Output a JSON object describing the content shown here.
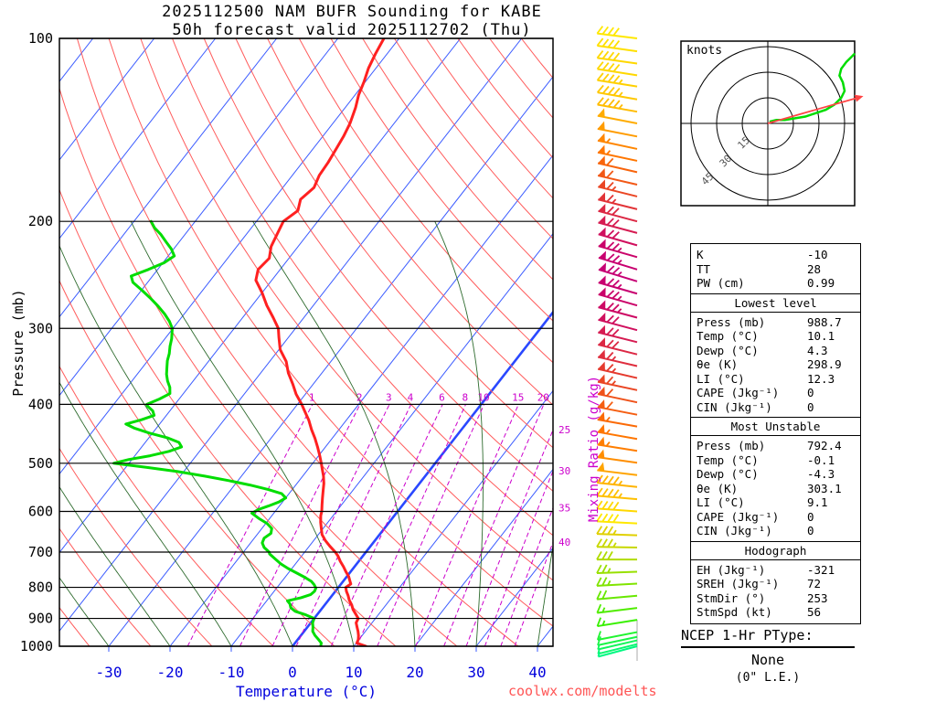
{
  "title": {
    "line1": "2025112500 NAM BUFR Sounding for KABE",
    "line2": "50h forecast valid 2025112702 (Thu)"
  },
  "watermark": "coolwx.com/modelts",
  "axes": {
    "pressure_label": "Pressure (mb)",
    "temp_label": "Temperature (°C)",
    "mixing_label": "Mixing Ratio (g/kg)",
    "pressure_ticks": [
      100,
      200,
      300,
      400,
      500,
      600,
      700,
      800,
      900,
      1000
    ],
    "temp_ticks": [
      -30,
      -20,
      -10,
      0,
      10,
      20,
      30,
      40
    ],
    "mixing_ratios": [
      1,
      2,
      3,
      4,
      6,
      8,
      10,
      15,
      20,
      25,
      30,
      35,
      40
    ]
  },
  "colors": {
    "temperature": "#ff2020",
    "dewpoint": "#00dd00",
    "isotherm": "#3b5bff",
    "zero_isotherm": "#2a48ff",
    "dry_adiabat": "#ff5c5c",
    "moist_adiabat": "#2e6b2e",
    "mixing": "#cc00cc",
    "temp_axis": "#0000dd",
    "storm_arrow": "#ff4444"
  },
  "chart_data": {
    "type": "skewt-log-p sounding",
    "pressure_range_mb": [
      100,
      1000
    ],
    "temp_axis_range_c": [
      -30,
      40
    ],
    "temperature_profile": [
      [
        1000,
        12
      ],
      [
        988,
        10.1
      ],
      [
        975,
        9.9
      ],
      [
        960,
        9.4
      ],
      [
        945,
        8.8
      ],
      [
        930,
        8.1
      ],
      [
        915,
        7.4
      ],
      [
        900,
        7.2
      ],
      [
        885,
        6.2
      ],
      [
        870,
        5.2
      ],
      [
        855,
        4.4
      ],
      [
        840,
        3.4
      ],
      [
        825,
        2.6
      ],
      [
        812,
        1.8
      ],
      [
        800,
        1.2
      ],
      [
        790,
        1.6
      ],
      [
        780,
        1.0
      ],
      [
        768,
        0.3
      ],
      [
        755,
        -0.7
      ],
      [
        740,
        -1.8
      ],
      [
        725,
        -3.0
      ],
      [
        710,
        -4.1
      ],
      [
        700,
        -5.0
      ],
      [
        685,
        -6.6
      ],
      [
        670,
        -8.1
      ],
      [
        655,
        -9.4
      ],
      [
        640,
        -10.3
      ],
      [
        625,
        -11.2
      ],
      [
        610,
        -12.0
      ],
      [
        600,
        -12.4
      ],
      [
        585,
        -13.2
      ],
      [
        570,
        -14.0
      ],
      [
        555,
        -14.8
      ],
      [
        540,
        -15.6
      ],
      [
        525,
        -16.6
      ],
      [
        510,
        -17.8
      ],
      [
        500,
        -18.6
      ],
      [
        485,
        -19.9
      ],
      [
        470,
        -21.3
      ],
      [
        455,
        -22.8
      ],
      [
        440,
        -24.5
      ],
      [
        425,
        -26.1
      ],
      [
        410,
        -28.0
      ],
      [
        400,
        -29.3
      ],
      [
        385,
        -31.5
      ],
      [
        370,
        -33.4
      ],
      [
        355,
        -35.5
      ],
      [
        340,
        -37.3
      ],
      [
        325,
        -39.8
      ],
      [
        310,
        -41.6
      ],
      [
        300,
        -42.8
      ],
      [
        288,
        -45.0
      ],
      [
        275,
        -47.6
      ],
      [
        262,
        -50.0
      ],
      [
        250,
        -52.6
      ],
      [
        240,
        -53.6
      ],
      [
        230,
        -53.2
      ],
      [
        220,
        -54.4
      ],
      [
        210,
        -55.0
      ],
      [
        200,
        -55.6
      ],
      [
        192,
        -54.6
      ],
      [
        184,
        -55.6
      ],
      [
        176,
        -54.9
      ],
      [
        168,
        -55.6
      ],
      [
        160,
        -55.8
      ],
      [
        152,
        -56.2
      ],
      [
        145,
        -56.6
      ],
      [
        138,
        -57.2
      ],
      [
        130,
        -58.3
      ],
      [
        124,
        -59.4
      ],
      [
        118,
        -60.2
      ],
      [
        112,
        -61.2
      ],
      [
        106,
        -61.9
      ],
      [
        100,
        -62.5
      ]
    ],
    "dewpoint_profile": [
      [
        1000,
        4.6
      ],
      [
        988,
        4.3
      ],
      [
        975,
        3.4
      ],
      [
        960,
        2.3
      ],
      [
        945,
        1.4
      ],
      [
        930,
        0.9
      ],
      [
        915,
        0.3
      ],
      [
        900,
        0.0
      ],
      [
        888,
        -1.8
      ],
      [
        876,
        -4.0
      ],
      [
        864,
        -5.2
      ],
      [
        852,
        -5.8
      ],
      [
        842,
        -6.6
      ],
      [
        832,
        -4.8
      ],
      [
        822,
        -3.6
      ],
      [
        812,
        -3.4
      ],
      [
        802,
        -3.6
      ],
      [
        792,
        -4.3
      ],
      [
        782,
        -5.2
      ],
      [
        770,
        -6.8
      ],
      [
        758,
        -8.6
      ],
      [
        745,
        -10.6
      ],
      [
        732,
        -12.4
      ],
      [
        718,
        -14.0
      ],
      [
        705,
        -15.5
      ],
      [
        700,
        -15.8
      ],
      [
        688,
        -17.2
      ],
      [
        676,
        -18.1
      ],
      [
        664,
        -18.4
      ],
      [
        652,
        -17.9
      ],
      [
        640,
        -18.4
      ],
      [
        628,
        -19.8
      ],
      [
        616,
        -21.8
      ],
      [
        604,
        -23.6
      ],
      [
        596,
        -23.0
      ],
      [
        588,
        -21.8
      ],
      [
        579,
        -20.6
      ],
      [
        570,
        -20.0
      ],
      [
        561,
        -21.2
      ],
      [
        552,
        -24.0
      ],
      [
        543,
        -27.5
      ],
      [
        534,
        -31.5
      ],
      [
        525,
        -36.0
      ],
      [
        516,
        -41.0
      ],
      [
        508,
        -46.5
      ],
      [
        500,
        -52.5
      ],
      [
        493,
        -50.5
      ],
      [
        486,
        -47.5
      ],
      [
        478,
        -45.0
      ],
      [
        470,
        -43.5
      ],
      [
        462,
        -44.5
      ],
      [
        454,
        -47.0
      ],
      [
        446,
        -50.5
      ],
      [
        438,
        -53.5
      ],
      [
        431,
        -55.5
      ],
      [
        424,
        -53.5
      ],
      [
        417,
        -52.0
      ],
      [
        410,
        -52.8
      ],
      [
        403,
        -54.2
      ],
      [
        400,
        -54.6
      ],
      [
        392,
        -53.2
      ],
      [
        384,
        -52.2
      ],
      [
        375,
        -53.0
      ],
      [
        366,
        -54.2
      ],
      [
        357,
        -55.2
      ],
      [
        348,
        -56.0
      ],
      [
        339,
        -56.8
      ],
      [
        330,
        -57.4
      ],
      [
        321,
        -58.2
      ],
      [
        312,
        -58.9
      ],
      [
        306,
        -59.5
      ],
      [
        300,
        -60.1
      ],
      [
        292,
        -61.5
      ],
      [
        284,
        -63.2
      ],
      [
        276,
        -65.2
      ],
      [
        268,
        -67.4
      ],
      [
        260,
        -69.8
      ],
      [
        252,
        -72.4
      ],
      [
        246,
        -73.5
      ],
      [
        240,
        -71.5
      ],
      [
        234,
        -69.8
      ],
      [
        228,
        -69.0
      ],
      [
        222,
        -70.4
      ],
      [
        216,
        -72.2
      ],
      [
        210,
        -74.0
      ],
      [
        205,
        -75.8
      ],
      [
        200,
        -77.2
      ]
    ],
    "winds": [
      [
        100,
        40,
        277,
        "#ffe800"
      ],
      [
        105,
        41,
        278,
        "#ffe000"
      ],
      [
        110,
        42,
        278,
        "#ffd800"
      ],
      [
        115,
        42,
        279,
        "#ffd800"
      ],
      [
        120,
        43,
        279,
        "#ffd000"
      ],
      [
        126,
        44,
        280,
        "#ffc800"
      ],
      [
        132,
        46,
        280,
        "#ffbc00"
      ],
      [
        138,
        48,
        281,
        "#ffac00"
      ],
      [
        145,
        50,
        281,
        "#ff9c00"
      ],
      [
        152,
        53,
        282,
        "#ff8600"
      ],
      [
        159,
        55,
        282,
        "#ff7600"
      ],
      [
        166,
        58,
        283,
        "#f8640c"
      ],
      [
        174,
        60,
        283,
        "#f25816"
      ],
      [
        182,
        63,
        284,
        "#ea4624"
      ],
      [
        191,
        66,
        284,
        "#e23438"
      ],
      [
        200,
        68,
        285,
        "#dc2844"
      ],
      [
        209,
        70,
        285,
        "#d61c52"
      ],
      [
        219,
        72,
        286,
        "#d0105e"
      ],
      [
        229,
        74,
        286,
        "#ca046a"
      ],
      [
        240,
        75,
        287,
        "#c80070"
      ],
      [
        251,
        76,
        287,
        "#c60074"
      ],
      [
        263,
        75,
        286,
        "#c80070"
      ],
      [
        275,
        74,
        286,
        "#ca046a"
      ],
      [
        288,
        73,
        285,
        "#cd0a64"
      ],
      [
        302,
        72,
        285,
        "#d0105e"
      ],
      [
        316,
        70,
        284,
        "#d61c52"
      ],
      [
        331,
        68,
        284,
        "#dc2844"
      ],
      [
        346,
        67,
        283,
        "#df2e3e"
      ],
      [
        362,
        65,
        283,
        "#e53a2e"
      ],
      [
        379,
        63,
        282,
        "#ea4624"
      ],
      [
        397,
        61,
        282,
        "#ef521a"
      ],
      [
        416,
        59,
        281,
        "#f55e12"
      ],
      [
        435,
        57,
        280,
        "#fb6a06"
      ],
      [
        456,
        55,
        280,
        "#ff7600"
      ],
      [
        477,
        54,
        279,
        "#ff7e00"
      ],
      [
        499,
        52,
        278,
        "#ff8e00"
      ],
      [
        523,
        49,
        277,
        "#ffa400"
      ],
      [
        547,
        47,
        276,
        "#ffb400"
      ],
      [
        573,
        45,
        275,
        "#ffc000"
      ],
      [
        600,
        42,
        274,
        "#ffd800"
      ],
      [
        628,
        40,
        273,
        "#ffe800"
      ],
      [
        657,
        37,
        272,
        "#e0d000"
      ],
      [
        688,
        34,
        271,
        "#c8d800"
      ],
      [
        720,
        31,
        270,
        "#b0dc00"
      ],
      [
        754,
        27,
        268,
        "#98e000"
      ],
      [
        789,
        23,
        267,
        "#80e400"
      ],
      [
        826,
        20,
        265,
        "#68e800"
      ],
      [
        865,
        16,
        263,
        "#50ec00"
      ],
      [
        905,
        13,
        261,
        "#38f000"
      ],
      [
        948,
        9,
        259,
        "#20f430"
      ],
      [
        965,
        8,
        258,
        "#18f545"
      ],
      [
        978,
        7,
        257,
        "#10f65a"
      ],
      [
        992,
        6,
        256,
        "#08f76e"
      ],
      [
        1000,
        5,
        255,
        "#00f882"
      ]
    ],
    "hodograph_trace_kt": [
      [
        1,
        1
      ],
      [
        5,
        2
      ],
      [
        10,
        2
      ],
      [
        16,
        3
      ],
      [
        22,
        4
      ],
      [
        28,
        6
      ],
      [
        34,
        8
      ],
      [
        39,
        11
      ],
      [
        43,
        15
      ],
      [
        45,
        19
      ],
      [
        44,
        24
      ],
      [
        42,
        28
      ],
      [
        43,
        32
      ],
      [
        46,
        36
      ],
      [
        49,
        39
      ],
      [
        51,
        41
      ]
    ],
    "storm_motion_kt": [
      56,
      16
    ]
  },
  "hodograph_panel": {
    "unit_label": "knots",
    "ring_labels": [
      15,
      30,
      45
    ]
  },
  "stats": {
    "sections": [
      {
        "title": null,
        "rows": [
          [
            "K",
            "-10"
          ],
          [
            "TT",
            "28"
          ],
          [
            "PW (cm)",
            "0.99"
          ]
        ]
      },
      {
        "title": "Lowest level",
        "rows": [
          [
            "Press (mb)",
            "988.7"
          ],
          [
            "Temp (°C)",
            "10.1"
          ],
          [
            "Dewp (°C)",
            "4.3"
          ],
          [
            "θe (K)",
            "298.9"
          ],
          [
            "LI (°C)",
            "12.3"
          ],
          [
            "CAPE (Jkg⁻¹)",
            "0"
          ],
          [
            "CIN (Jkg⁻¹)",
            "0"
          ]
        ]
      },
      {
        "title": "Most Unstable",
        "rows": [
          [
            "Press (mb)",
            "792.4"
          ],
          [
            "Temp (°C)",
            "-0.1"
          ],
          [
            "Dewp (°C)",
            "-4.3"
          ],
          [
            "θe (K)",
            "303.1"
          ],
          [
            "LI (°C)",
            "9.1"
          ],
          [
            "CAPE (Jkg⁻¹)",
            "0"
          ],
          [
            "CIN (Jkg⁻¹)",
            "0"
          ]
        ]
      },
      {
        "title": "Hodograph",
        "rows": [
          [
            "EH (Jkg⁻¹)",
            "-321"
          ],
          [
            "SREH (Jkg⁻¹)",
            "72"
          ],
          [
            "StmDir (°)",
            "253"
          ],
          [
            "StmSpd (kt)",
            "56"
          ]
        ]
      }
    ]
  },
  "ptype": {
    "title": "NCEP 1-Hr PType:",
    "value": "None",
    "sub": "(0\" L.E.)"
  }
}
